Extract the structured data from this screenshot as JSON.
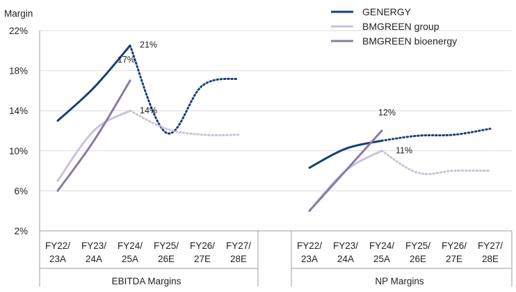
{
  "chart_data": {
    "type": "line",
    "ylabel": "Margin",
    "ylim": [
      0.02,
      0.22
    ],
    "yticks": [
      0.02,
      0.06,
      0.1,
      0.14,
      0.18,
      0.22
    ],
    "ytick_labels": [
      "2%",
      "6%",
      "10%",
      "14%",
      "18%",
      "22%"
    ],
    "grid": true,
    "legend_position": "top-right",
    "categories": [
      [
        "FY22/",
        "23A"
      ],
      [
        "FY23/",
        "24A"
      ],
      [
        "FY24/",
        "25A"
      ],
      [
        "FY25/",
        "26E"
      ],
      [
        "FY26/",
        "27E"
      ],
      [
        "FY27/",
        "28E"
      ]
    ],
    "groups": [
      {
        "name": "EBITDA Margins",
        "series": [
          {
            "name": "GENERGY",
            "values": [
              0.13,
              0.163,
              0.205,
              0.118,
              0.165,
              0.172
            ],
            "color": "#173E77",
            "actual_count": 3,
            "projected": true
          },
          {
            "name": "BMGREEN group",
            "values": [
              0.07,
              0.12,
              0.14,
              0.122,
              0.116,
              0.116
            ],
            "color": "#C8C3DC",
            "actual_count": 3,
            "projected": true
          },
          {
            "name": "BMGREEN bioenergy",
            "values": [
              0.06,
              0.11,
              0.17
            ],
            "color": "#8A78A6",
            "actual_count": 3,
            "projected": false
          }
        ],
        "annotations": [
          {
            "text": "21%",
            "series": "GENERGY",
            "index": 2
          },
          {
            "text": "17%",
            "series": "BMGREEN bioenergy",
            "index": 2
          },
          {
            "text": "14%",
            "series": "BMGREEN group",
            "index": 2
          }
        ]
      },
      {
        "name": "NP Margins",
        "series": [
          {
            "name": "GENERGY",
            "values": [
              0.083,
              0.102,
              0.11,
              0.115,
              0.116,
              0.122
            ],
            "color": "#173E77",
            "actual_count": 3,
            "projected": true
          },
          {
            "name": "BMGREEN group",
            "values": [
              0.04,
              0.08,
              0.1,
              0.078,
              0.08,
              0.08
            ],
            "color": "#C8C3DC",
            "actual_count": 3,
            "projected": true
          },
          {
            "name": "BMGREEN bioenergy",
            "values": [
              0.04,
              0.08,
              0.12
            ],
            "color": "#8A78A6",
            "actual_count": 3,
            "projected": false
          }
        ],
        "annotations": [
          {
            "text": "12%",
            "series": "BMGREEN bioenergy",
            "index": 2
          },
          {
            "text": "11%",
            "series": "GENERGY",
            "index": 2
          }
        ]
      }
    ],
    "legend": [
      {
        "name": "GENERGY",
        "color": "#173E77"
      },
      {
        "name": "BMGREEN group",
        "color": "#C8C3DC"
      },
      {
        "name": "BMGREEN bioenergy",
        "color": "#8A78A6"
      }
    ]
  }
}
